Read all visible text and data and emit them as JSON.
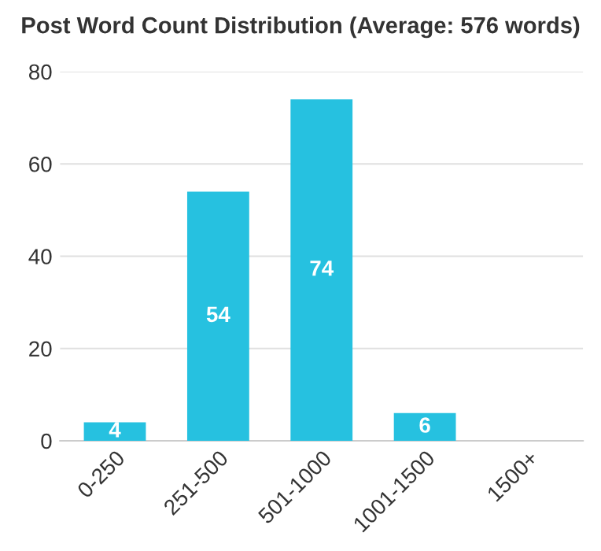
{
  "chart_data": {
    "type": "bar",
    "title": "Post Word Count Distribution (Average: 576 words)",
    "categories": [
      "0-250",
      "251-500",
      "501-1000",
      "1001-1500",
      "1500+"
    ],
    "values": [
      4,
      54,
      74,
      6,
      0
    ],
    "value_labels": [
      "4",
      "54",
      "74",
      "6",
      null
    ],
    "color": "#26c1e0",
    "ylim": [
      0,
      80
    ],
    "yticks": [
      0,
      20,
      40,
      60,
      80
    ],
    "grid": "y"
  }
}
